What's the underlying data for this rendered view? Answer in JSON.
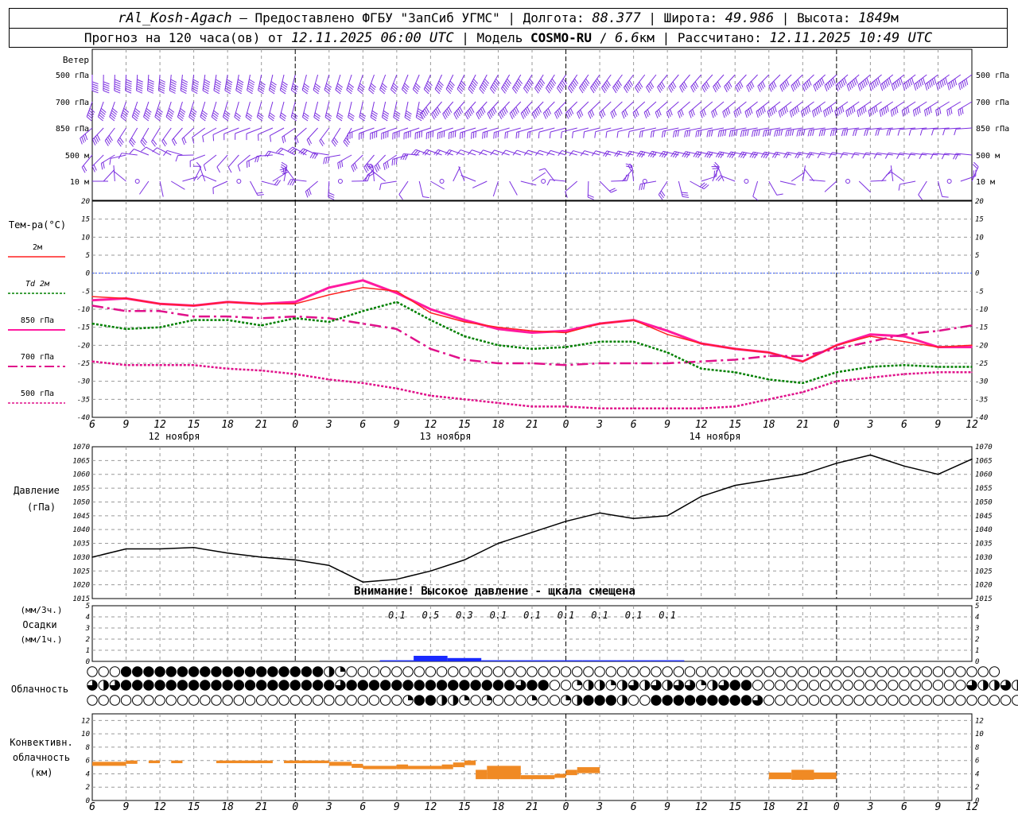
{
  "header": {
    "station": "rAl_Kosh-Agach",
    "provider": "Предоставлено ФГБУ \"ЗапСиб УГМС\"",
    "lon_label": "Долгота:",
    "lon": "88.377",
    "lat_label": "Широта:",
    "lat": "49.986",
    "alt_label": "Высота:",
    "alt": "1849",
    "alt_unit": "м",
    "forecast_prefix": "Прогноз на 120 часа(ов) от",
    "forecast_start": "12.11.2025 06:00 UTC",
    "model_label": "Модель",
    "model": "COSMO-RU",
    "resolution": "6.6",
    "res_unit": "км",
    "calc_label": "Рассчитано:",
    "calc_time": "12.11.2025 10:49 UTC"
  },
  "wind": {
    "title": "Ветер",
    "levels": [
      "500 гПа",
      "700 гПа",
      "850 гПа",
      "500 м",
      "10  м"
    ],
    "color": "#7b2fe0"
  },
  "time_axis": {
    "hour_labels": [
      "6",
      "9",
      "12",
      "15",
      "18",
      "21",
      "0",
      "3",
      "6",
      "9",
      "12",
      "15",
      "18",
      "21",
      "0",
      "3",
      "6",
      "9",
      "12",
      "15",
      "18",
      "21",
      "0",
      "3",
      "6",
      "9",
      "12"
    ],
    "date_labels": [
      "12 ноября",
      "13 ноября",
      "14 ноября"
    ]
  },
  "chart_data": [
    {
      "type": "line",
      "panel": "temperature",
      "title": "Тем-ра(°С)",
      "ylim": [
        -40,
        20
      ],
      "yticks": [
        20,
        15,
        10,
        5,
        0,
        -5,
        -10,
        -15,
        -20,
        -25,
        -30,
        -35,
        -40
      ],
      "x_hours": [
        0,
        3,
        6,
        9,
        12,
        15,
        18,
        21,
        24,
        27,
        30,
        33,
        36,
        39,
        42,
        45,
        48,
        51,
        54,
        57,
        60,
        63,
        66,
        69,
        72,
        75,
        78
      ],
      "series": [
        {
          "name": "2м",
          "color": "#ff2020",
          "values": [
            -6.5,
            -7,
            -8.5,
            -9,
            -8,
            -8.5,
            -8.5,
            -6,
            -4,
            -5,
            -11,
            -13.5,
            -15,
            -16,
            -16.5,
            -14,
            -13,
            -17,
            -19.5,
            -21,
            -22,
            -24.5,
            -20,
            -17.5,
            -19,
            -20.5,
            -20
          ]
        },
        {
          "name": "Td  2м",
          "color": "#008000",
          "values": [
            -14,
            -15.5,
            -15,
            -13,
            -13,
            -14.5,
            -12.5,
            -13.5,
            -10.5,
            -8,
            -13,
            -17.5,
            -20,
            -21,
            -20.5,
            -19,
            -19,
            -22,
            -26.5,
            -27.5,
            -29.5,
            -30.5,
            -27.5,
            -26,
            -25.5,
            -26,
            -26
          ]
        },
        {
          "name": "850 гПа",
          "color": "#ff1aa0",
          "values": [
            -7.5,
            -7,
            -8.5,
            -9,
            -8,
            -8.5,
            -8,
            -4,
            -2,
            -5.5,
            -10,
            -13,
            -15.5,
            -16.5,
            -16,
            -14,
            -13,
            -16,
            -19.5,
            -21,
            -22,
            -24.5,
            -20,
            -17,
            -17.5,
            -20.5,
            -20.5
          ]
        },
        {
          "name": "700 гПа",
          "color": "#e0108a",
          "values": [
            -9,
            -10.5,
            -10.5,
            -12,
            -12,
            -12.5,
            -12,
            -12.5,
            -14,
            -15.5,
            -21,
            -24,
            -25,
            -25,
            -25.5,
            -25,
            -25,
            -25,
            -24.5,
            -24,
            -23,
            -23,
            -21,
            -19,
            -17,
            -16,
            -14.5
          ]
        },
        {
          "name": "500 гПа",
          "color": "#e0108a",
          "values": [
            -24.5,
            -25.5,
            -25.5,
            -25.5,
            -26.5,
            -27,
            -28,
            -29.5,
            -30.5,
            -32,
            -34,
            -35,
            -36,
            -37,
            -37,
            -37.5,
            -37.5,
            -37.5,
            -37.5,
            -37,
            -35,
            -33,
            -30,
            -29,
            -28,
            -27.5,
            -27.5
          ]
        }
      ]
    },
    {
      "type": "line",
      "panel": "pressure",
      "title": "Давление",
      "subtitle": "(гПа)",
      "ylim": [
        1015,
        1070
      ],
      "yticks": [
        1070,
        1065,
        1060,
        1055,
        1050,
        1045,
        1040,
        1035,
        1030,
        1025,
        1020,
        1015
      ],
      "x_hours": [
        0,
        3,
        6,
        9,
        12,
        15,
        18,
        21,
        24,
        27,
        30,
        33,
        36,
        39,
        42,
        45,
        48,
        51,
        54,
        57,
        60,
        63,
        66,
        69,
        72,
        75,
        78
      ],
      "series": [
        {
          "name": "",
          "color": "#000000",
          "values": [
            1030,
            1033,
            1033,
            1033.5,
            1031.5,
            1030,
            1029,
            1027,
            1021,
            1022,
            1025,
            1029,
            1035,
            1039,
            1043,
            1046,
            1044,
            1045,
            1052,
            1056,
            1058,
            1060,
            1064,
            1067,
            1063,
            1060,
            1065.5
          ]
        }
      ],
      "note": "Внимание! Высокое давление - щкала смещена"
    },
    {
      "type": "bar",
      "panel": "precipitation",
      "title": "Осадки",
      "ylabel_top": "(мм/3ч.)",
      "ylabel_bottom": "(мм/1ч.)",
      "ylim": [
        0,
        5
      ],
      "yticks": [
        5,
        4,
        3,
        2,
        1,
        0
      ],
      "color": "#1a2aff",
      "x_hours": [
        27,
        30,
        33,
        36,
        39,
        42,
        45,
        48,
        51
      ],
      "values": [
        0.1,
        0.5,
        0.3,
        0.1,
        0.1,
        0.1,
        0.1,
        0.1,
        0.1
      ],
      "value_labels": [
        "0.1",
        "0.5",
        "0.3",
        "0.1",
        "0.1",
        "0.1",
        "0.1",
        "0.1",
        "0.1"
      ]
    },
    {
      "type": "table",
      "panel": "cloudiness",
      "title": "Облачность",
      "note": "cloud cover fraction per hour, rows top to bottom",
      "rows": [
        [
          0,
          0,
          0,
          1,
          1,
          1,
          1,
          1,
          1,
          1,
          1,
          1,
          1,
          1,
          1,
          1,
          1,
          1,
          1,
          1,
          1,
          0.5,
          0.25,
          0,
          0,
          0,
          0,
          0,
          0,
          0,
          0,
          0,
          0,
          0,
          0,
          0,
          0,
          0,
          0,
          0,
          0,
          0,
          0,
          0,
          0,
          0,
          0,
          0,
          0,
          0,
          0,
          0,
          0,
          0,
          0,
          0,
          0,
          0,
          0,
          0,
          0,
          0,
          0,
          0,
          0,
          0,
          0,
          0,
          0,
          0,
          0,
          0,
          0,
          0,
          0,
          0,
          0,
          0,
          0,
          0,
          0
        ],
        [
          0.75,
          0.5,
          0.75,
          1,
          1,
          1,
          1,
          1,
          1,
          1,
          1,
          1,
          1,
          1,
          1,
          1,
          1,
          1,
          1,
          1,
          1,
          1,
          0.75,
          1,
          1,
          1,
          1,
          1,
          1,
          1,
          1,
          1,
          1,
          1,
          1,
          1,
          1,
          1,
          0.75,
          1,
          1,
          0,
          0,
          0.25,
          0.5,
          0.5,
          0.25,
          0.5,
          0.75,
          0.5,
          0.75,
          0.5,
          0.75,
          0.75,
          0.25,
          0.5,
          0.75,
          1,
          1,
          0,
          0,
          0,
          0,
          0,
          0,
          0,
          0,
          0,
          0,
          0,
          0,
          0,
          0,
          0,
          0,
          0,
          0,
          0,
          0.75,
          0.5,
          0.5,
          0.75,
          0.5,
          0.25
        ],
        [
          0,
          0,
          0,
          0,
          0,
          0,
          0,
          0,
          0,
          0,
          0,
          0,
          0,
          0,
          0,
          0,
          0,
          0,
          0,
          0,
          0,
          0,
          0,
          0,
          0,
          0,
          0,
          0,
          0.25,
          1,
          1,
          0.5,
          0.5,
          0.25,
          0,
          0.25,
          0,
          0,
          0,
          0.25,
          0,
          0,
          0.25,
          0.5,
          1,
          1,
          1,
          0.5,
          0,
          0,
          1,
          1,
          1,
          1,
          1,
          1,
          1,
          1,
          1,
          0.75,
          0,
          0,
          0,
          0,
          0,
          0,
          0,
          0,
          0,
          0,
          0,
          0,
          0,
          0,
          0,
          0,
          0,
          0,
          0,
          0,
          0,
          0,
          0,
          0,
          0
        ]
      ]
    },
    {
      "type": "bar",
      "panel": "convective",
      "title": "Конвективн.",
      "title2": "облачность",
      "ylabel": "(км)",
      "ylim": [
        0,
        13
      ],
      "yticks": [
        12,
        10,
        8,
        6,
        4,
        2,
        0
      ],
      "color": "#f08a24",
      "segments": [
        {
          "h0": 0,
          "h1": 3,
          "bottom": 5.2,
          "top": 5.8
        },
        {
          "h0": 3,
          "h1": 4,
          "bottom": 5.5,
          "top": 6
        },
        {
          "h0": 5,
          "h1": 6,
          "bottom": 5.6,
          "top": 6
        },
        {
          "h0": 7,
          "h1": 8,
          "bottom": 5.6,
          "top": 6
        },
        {
          "h0": 11,
          "h1": 16,
          "bottom": 5.6,
          "top": 6
        },
        {
          "h0": 17,
          "h1": 21,
          "bottom": 5.6,
          "top": 6
        },
        {
          "h0": 21,
          "h1": 23,
          "bottom": 5.2,
          "top": 5.8
        },
        {
          "h0": 23,
          "h1": 24,
          "bottom": 4.9,
          "top": 5.5
        },
        {
          "h0": 24,
          "h1": 27,
          "bottom": 4.7,
          "top": 5.2
        },
        {
          "h0": 27,
          "h1": 28,
          "bottom": 4.7,
          "top": 5.4
        },
        {
          "h0": 28,
          "h1": 31,
          "bottom": 4.7,
          "top": 5.2
        },
        {
          "h0": 31,
          "h1": 32,
          "bottom": 4.7,
          "top": 5.4
        },
        {
          "h0": 32,
          "h1": 33,
          "bottom": 5,
          "top": 5.7
        },
        {
          "h0": 33,
          "h1": 34,
          "bottom": 5.3,
          "top": 6
        },
        {
          "h0": 34,
          "h1": 35,
          "bottom": 3.2,
          "top": 4.6
        },
        {
          "h0": 35,
          "h1": 38,
          "bottom": 3.2,
          "top": 5.2
        },
        {
          "h0": 38,
          "h1": 41,
          "bottom": 3.2,
          "top": 3.8
        },
        {
          "h0": 41,
          "h1": 42,
          "bottom": 3.4,
          "top": 4
        },
        {
          "h0": 42,
          "h1": 43,
          "bottom": 3.8,
          "top": 4.6
        },
        {
          "h0": 43,
          "h1": 45,
          "bottom": 4.1,
          "top": 5
        },
        {
          "h0": 60,
          "h1": 62,
          "bottom": 3.2,
          "top": 4.2
        },
        {
          "h0": 62,
          "h1": 64,
          "bottom": 3.1,
          "top": 4.6
        },
        {
          "h0": 64,
          "h1": 66,
          "bottom": 3.2,
          "top": 4.2
        }
      ]
    }
  ]
}
